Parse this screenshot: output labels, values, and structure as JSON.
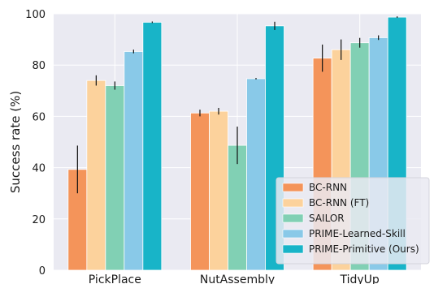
{
  "chart_data": {
    "type": "bar",
    "title": "",
    "xlabel": "",
    "ylabel": "Success rate (%)",
    "ylim": [
      0,
      100
    ],
    "yticks": [
      "0",
      "20",
      "40",
      "60",
      "80",
      "100"
    ],
    "categories": [
      "PickPlace",
      "NutAssembly",
      "TidyUp"
    ],
    "series": [
      {
        "name": "BC-RNN",
        "color": "#f4945a",
        "values": [
          39.3,
          61.3,
          82.7
        ],
        "errors": [
          9.3,
          1.3,
          5.3
        ]
      },
      {
        "name": "BC-RNN (FT)",
        "color": "#fcd29c",
        "values": [
          74.0,
          62.0,
          86.0
        ],
        "errors": [
          2.0,
          1.3,
          4.0
        ]
      },
      {
        "name": "SAILOR",
        "color": "#81d0b4",
        "values": [
          72.0,
          48.7,
          88.7
        ],
        "errors": [
          1.6,
          7.3,
          1.9
        ]
      },
      {
        "name": "PRIME-Learned-Skill",
        "color": "#89c9e8",
        "values": [
          85.3,
          74.7,
          90.7
        ],
        "errors": [
          0.7,
          0.3,
          0.9
        ]
      },
      {
        "name": "PRIME-Primitive (Ours)",
        "color": "#18b4c8",
        "values": [
          96.7,
          95.3,
          98.7
        ],
        "errors": [
          0.3,
          1.6,
          0.3
        ]
      }
    ],
    "grid": true,
    "legend_position": "bottom-right"
  }
}
